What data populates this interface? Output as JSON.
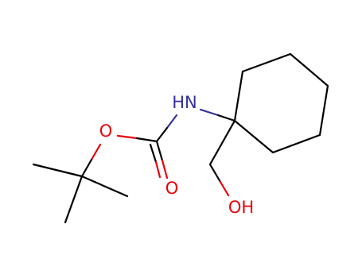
{
  "atoms": [
    {
      "label": "HN"
    },
    {
      "label": "O"
    },
    {
      "label": "O"
    },
    {
      "label": "OH"
    }
  ]
}
